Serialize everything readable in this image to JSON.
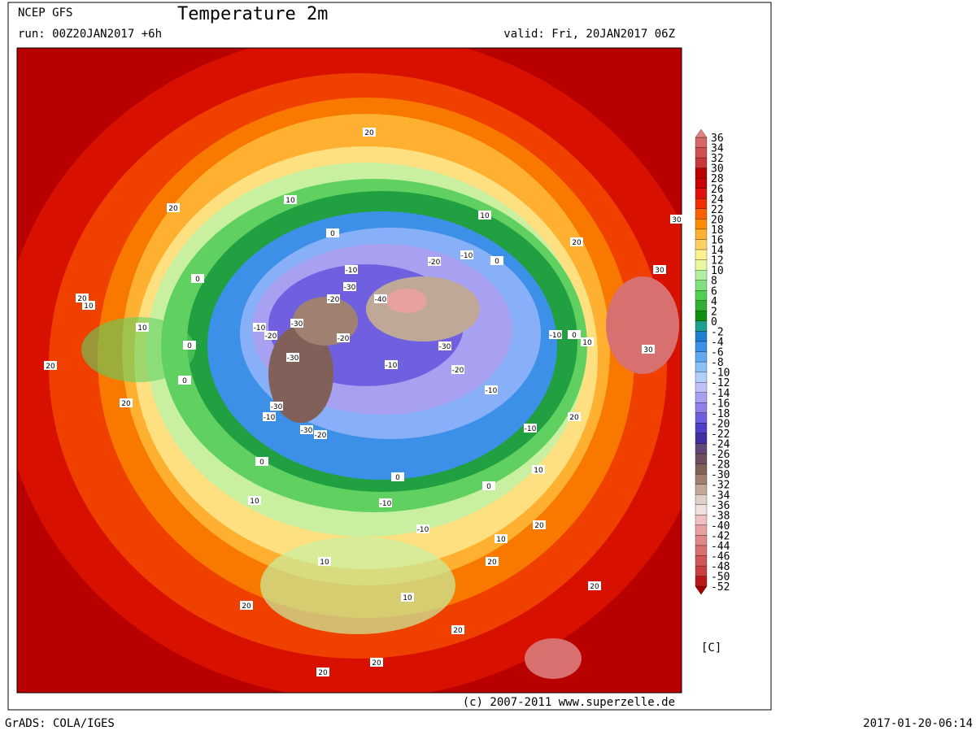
{
  "header": {
    "model": "NCEP GFS",
    "title": "Temperature 2m",
    "run": "run: 00Z20JAN2017 +6h",
    "valid": "valid: Fri, 20JAN2017 06Z"
  },
  "colorbar": {
    "unit": "[C]",
    "levels": [
      36,
      34,
      32,
      30,
      28,
      26,
      24,
      22,
      20,
      18,
      16,
      14,
      12,
      10,
      8,
      6,
      4,
      2,
      0,
      -2,
      -4,
      -6,
      -8,
      -10,
      -12,
      -14,
      -16,
      -18,
      -20,
      -22,
      -24,
      -26,
      -28,
      -30,
      -32,
      -34,
      -36,
      -38,
      -40,
      -42,
      -44,
      -46,
      -48,
      -50,
      -52
    ],
    "colors": [
      "#e08080",
      "#d86868",
      "#d05050",
      "#c83838",
      "#b80000",
      "#c80000",
      "#e01010",
      "#f03000",
      "#f86000",
      "#ff8c00",
      "#ffb030",
      "#ffd060",
      "#fff090",
      "#e8f8a0",
      "#b0f0a0",
      "#80e080",
      "#50d050",
      "#30b030",
      "#109010",
      "#20a090",
      "#2080d0",
      "#3c90e8",
      "#60a8f0",
      "#88c0f8",
      "#b0d0fa",
      "#c0c0f8",
      "#a8a0f0",
      "#9080e8",
      "#7060e0",
      "#5040c8",
      "#4030a0",
      "#604878",
      "#705060",
      "#806058",
      "#a08070",
      "#c0a898",
      "#e0d0c8",
      "#f0e0e0",
      "#f0c0c0",
      "#e8a0a0",
      "#e08888",
      "#d87070",
      "#d05858",
      "#c84040",
      "#b81818",
      "#a00000"
    ]
  },
  "contour_labels": [
    20,
    10,
    20,
    0,
    10,
    20,
    30,
    -10,
    -20,
    -10,
    0,
    -30,
    -40,
    -20,
    30,
    -10,
    -20,
    -30,
    -20,
    -30,
    -10,
    0,
    10,
    30,
    -10,
    -20,
    -30,
    -10,
    -30,
    -10,
    -20,
    -30,
    0,
    -10,
    20,
    10,
    0,
    0,
    10,
    -10,
    -10,
    10,
    20,
    10,
    20,
    10,
    20,
    20,
    20,
    20,
    20,
    20,
    10,
    20,
    20,
    10,
    0,
    0,
    0
  ],
  "footer": {
    "copyright": "(c) 2007-2011 www.superzelle.de",
    "software": "GrADS: COLA/IGES",
    "timestamp": "2017-01-20-06:14"
  }
}
